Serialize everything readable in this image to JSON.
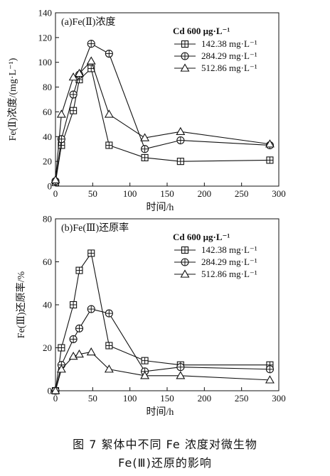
{
  "caption": {
    "line1": "图 7   絮体中不同 Fe 浓度对微生物",
    "line2": "Fe(Ⅲ)还原的影响"
  },
  "chart_data": [
    {
      "type": "line",
      "title": "(a)Fe(Ⅱ)浓度",
      "xlabel": "时间/h",
      "ylabel": "Fe(Ⅱ)浓度/(mg·L⁻¹)",
      "xlim": [
        0,
        300
      ],
      "ylim": [
        0,
        140
      ],
      "xticks": [
        0,
        50,
        100,
        150,
        200,
        250,
        300
      ],
      "yticks": [
        0,
        20,
        40,
        60,
        80,
        100,
        120,
        140
      ],
      "legend_title": "Cd 600 μg·L⁻¹",
      "legend_position": "top-right",
      "grid": false,
      "x": [
        0,
        8,
        24,
        32,
        48,
        72,
        120,
        168,
        288
      ],
      "series": [
        {
          "name": "142.38 mg·L⁻¹",
          "marker": "square-cross",
          "values": [
            3,
            33,
            61,
            86,
            95,
            33,
            23,
            20,
            21
          ]
        },
        {
          "name": "284.29 mg·L⁻¹",
          "marker": "circle-cross",
          "values": [
            4,
            38,
            74,
            90,
            115,
            107,
            30,
            37,
            33
          ]
        },
        {
          "name": "512.86 mg·L⁻¹",
          "marker": "triangle",
          "values": [
            5,
            58,
            88,
            91,
            101,
            58,
            39,
            44,
            34
          ]
        }
      ]
    },
    {
      "type": "line",
      "title": "(b)Fe(Ⅲ)还原率",
      "xlabel": "时间/h",
      "ylabel": "Fe(Ⅲ)还原率/%",
      "xlim": [
        0,
        300
      ],
      "ylim": [
        0,
        80
      ],
      "xticks": [
        0,
        50,
        100,
        150,
        200,
        250,
        300
      ],
      "yticks": [
        0,
        20,
        40,
        60,
        80
      ],
      "legend_title": "Cd 600 μg·L⁻¹",
      "legend_position": "top-right",
      "grid": false,
      "x": [
        0,
        8,
        24,
        32,
        48,
        72,
        120,
        168,
        288
      ],
      "series": [
        {
          "name": "142.38 mg·L⁻¹",
          "marker": "square-cross",
          "values": [
            0,
            20,
            40,
            56,
            64,
            21,
            14,
            12,
            12
          ]
        },
        {
          "name": "284.29 mg·L⁻¹",
          "marker": "circle-cross",
          "values": [
            0,
            12,
            24,
            29,
            38,
            36,
            9,
            11,
            10
          ]
        },
        {
          "name": "512.86 mg·L⁻¹",
          "marker": "triangle",
          "values": [
            0,
            10,
            16,
            17,
            18,
            10,
            7,
            7,
            5
          ]
        }
      ]
    }
  ]
}
